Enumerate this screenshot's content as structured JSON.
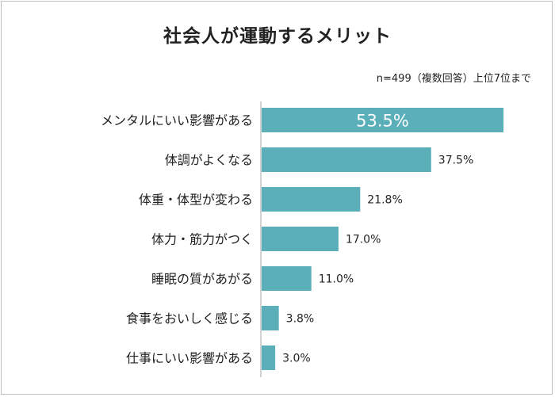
{
  "chart_data": {
    "type": "bar",
    "orientation": "horizontal",
    "title": "社会人が運動するメリット",
    "note": "n=499（複数回答）上位7位まで",
    "categories": [
      "メンタルにいい影響がある",
      "体調がよくなる",
      "体重・体型が変わる",
      "体力・筋力がつく",
      "睡眠の質があがる",
      "食事をおいしく感じる",
      "仕事にいい影響がある"
    ],
    "values": [
      53.5,
      37.5,
      21.8,
      17.0,
      11.0,
      3.8,
      3.0
    ],
    "value_labels": [
      "53.5%",
      "37.5%",
      "21.8%",
      "17.0%",
      "11.0%",
      "3.8%",
      "3.0%"
    ],
    "xlim": [
      0,
      53.5
    ],
    "bar_color": "#5aafb9",
    "axis_color": "#a6a6a6",
    "grid": false,
    "legend": "none"
  }
}
